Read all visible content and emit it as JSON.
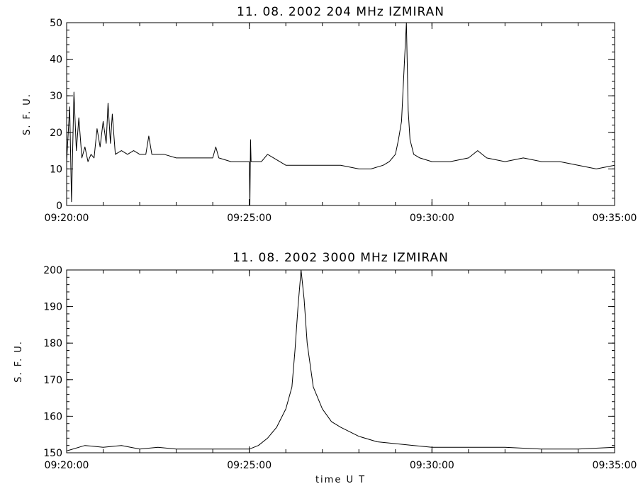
{
  "chart_data": [
    {
      "type": "line",
      "title": "11.  08.  2002    204 MHz    IZMIRAN",
      "ylabel": "S. F. U.",
      "xlabel": "",
      "x_ticks": [
        "09:20:00",
        "09:25:00",
        "09:30:00",
        "09:35:00"
      ],
      "xlim": [
        "09:20:00",
        "09:35:00"
      ],
      "ylim": [
        0,
        50
      ],
      "y_ticks": [
        0,
        10,
        20,
        30,
        40,
        50
      ],
      "grid": false,
      "series": [
        {
          "color": "#000000",
          "points": [
            [
              "09:20:00",
              12
            ],
            [
              "09:20:05",
              27
            ],
            [
              "09:20:08",
              1
            ],
            [
              "09:20:12",
              31
            ],
            [
              "09:20:16",
              15
            ],
            [
              "09:20:20",
              24
            ],
            [
              "09:20:25",
              13
            ],
            [
              "09:20:30",
              16
            ],
            [
              "09:20:35",
              12
            ],
            [
              "09:20:40",
              14
            ],
            [
              "09:20:45",
              13
            ],
            [
              "09:20:50",
              21
            ],
            [
              "09:20:55",
              16
            ],
            [
              "09:21:00",
              23
            ],
            [
              "09:21:05",
              17
            ],
            [
              "09:21:08",
              28
            ],
            [
              "09:21:12",
              17
            ],
            [
              "09:21:15",
              25
            ],
            [
              "09:21:20",
              14
            ],
            [
              "09:21:30",
              15
            ],
            [
              "09:21:40",
              14
            ],
            [
              "09:21:50",
              15
            ],
            [
              "09:22:00",
              14
            ],
            [
              "09:22:10",
              14
            ],
            [
              "09:22:15",
              19
            ],
            [
              "09:22:20",
              14
            ],
            [
              "09:22:40",
              14
            ],
            [
              "09:23:00",
              13
            ],
            [
              "09:23:20",
              13
            ],
            [
              "09:23:40",
              13
            ],
            [
              "09:24:00",
              13
            ],
            [
              "09:24:05",
              16
            ],
            [
              "09:24:10",
              13
            ],
            [
              "09:24:30",
              12
            ],
            [
              "09:24:50",
              12
            ],
            [
              "09:25:00",
              12
            ],
            [
              "09:25:01",
              0
            ],
            [
              "09:25:02",
              18
            ],
            [
              "09:25:03",
              12
            ],
            [
              "09:25:20",
              12
            ],
            [
              "09:25:30",
              14
            ],
            [
              "09:25:40",
              13
            ],
            [
              "09:26:00",
              11
            ],
            [
              "09:26:30",
              11
            ],
            [
              "09:27:00",
              11
            ],
            [
              "09:27:30",
              11
            ],
            [
              "09:28:00",
              10
            ],
            [
              "09:28:20",
              10
            ],
            [
              "09:28:40",
              11
            ],
            [
              "09:28:50",
              12
            ],
            [
              "09:29:00",
              14
            ],
            [
              "09:29:05",
              18
            ],
            [
              "09:29:10",
              23
            ],
            [
              "09:29:15",
              40
            ],
            [
              "09:29:18",
              50
            ],
            [
              "09:29:21",
              26
            ],
            [
              "09:29:24",
              18
            ],
            [
              "09:29:30",
              14
            ],
            [
              "09:29:40",
              13
            ],
            [
              "09:30:00",
              12
            ],
            [
              "09:30:30",
              12
            ],
            [
              "09:31:00",
              13
            ],
            [
              "09:31:15",
              15
            ],
            [
              "09:31:30",
              13
            ],
            [
              "09:32:00",
              12
            ],
            [
              "09:32:30",
              13
            ],
            [
              "09:33:00",
              12
            ],
            [
              "09:33:30",
              12
            ],
            [
              "09:34:00",
              11
            ],
            [
              "09:34:30",
              10
            ],
            [
              "09:35:00",
              11
            ]
          ]
        }
      ]
    },
    {
      "type": "line",
      "title": "11.  08.  2002    3000 MHz    IZMIRAN",
      "ylabel": "S. F. U.",
      "xlabel": "time   U T",
      "x_ticks": [
        "09:20:00",
        "09:25:00",
        "09:30:00",
        "09:35:00"
      ],
      "xlim": [
        "09:20:00",
        "09:35:00"
      ],
      "ylim": [
        150,
        200
      ],
      "y_ticks": [
        150,
        160,
        170,
        180,
        190,
        200
      ],
      "grid": false,
      "series": [
        {
          "color": "#000000",
          "points": [
            [
              "09:20:00",
              150.5
            ],
            [
              "09:20:30",
              152
            ],
            [
              "09:21:00",
              151.5
            ],
            [
              "09:21:30",
              152
            ],
            [
              "09:22:00",
              151
            ],
            [
              "09:22:30",
              151.5
            ],
            [
              "09:23:00",
              151
            ],
            [
              "09:23:30",
              151
            ],
            [
              "09:24:00",
              151
            ],
            [
              "09:24:30",
              151
            ],
            [
              "09:25:00",
              151
            ],
            [
              "09:25:15",
              152
            ],
            [
              "09:25:30",
              154
            ],
            [
              "09:25:45",
              157
            ],
            [
              "09:26:00",
              162
            ],
            [
              "09:26:10",
              168
            ],
            [
              "09:26:15",
              178
            ],
            [
              "09:26:20",
              190
            ],
            [
              "09:26:25",
              200
            ],
            [
              "09:26:30",
              192
            ],
            [
              "09:26:35",
              180
            ],
            [
              "09:26:45",
              168
            ],
            [
              "09:27:00",
              162
            ],
            [
              "09:27:15",
              158.5
            ],
            [
              "09:27:30",
              157
            ],
            [
              "09:28:00",
              154.5
            ],
            [
              "09:28:30",
              153
            ],
            [
              "09:29:00",
              152.5
            ],
            [
              "09:29:30",
              152
            ],
            [
              "09:30:00",
              151.5
            ],
            [
              "09:31:00",
              151.5
            ],
            [
              "09:32:00",
              151.5
            ],
            [
              "09:33:00",
              151
            ],
            [
              "09:34:00",
              151
            ],
            [
              "09:35:00",
              151.5
            ]
          ]
        }
      ]
    }
  ]
}
